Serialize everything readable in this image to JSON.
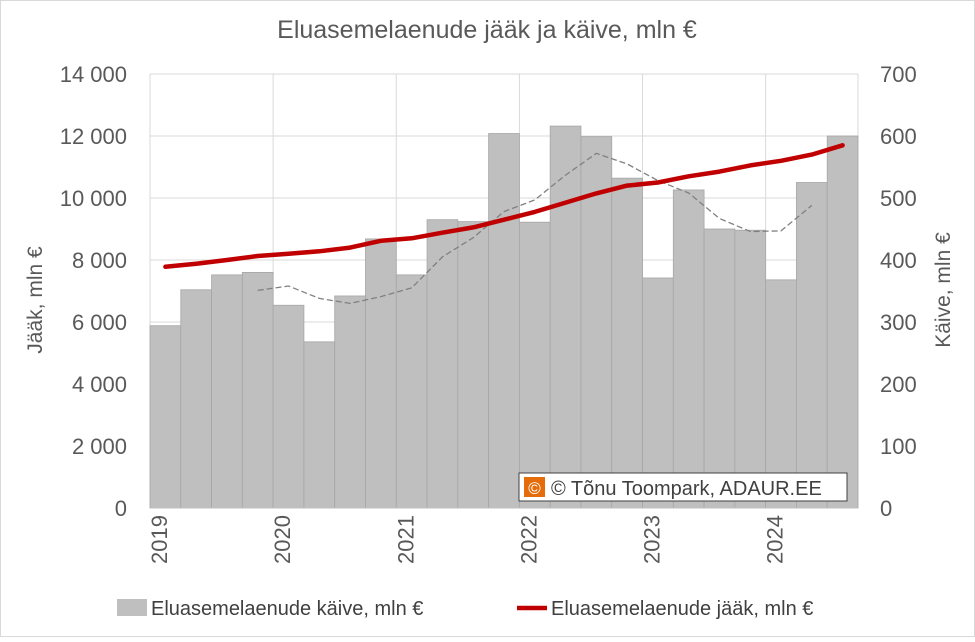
{
  "chart_data": {
    "type": "bar+line",
    "title": "Eluasemelaenude jääk ja käive, mln €",
    "ylabel_left": "Jääk, mln €",
    "ylabel_right": "Käive, mln €",
    "ylim_left": [
      0,
      14000
    ],
    "ylim_right": [
      0,
      700
    ],
    "yticks_left": [
      "0",
      "2 000",
      "4 000",
      "6 000",
      "8 000",
      "10 000",
      "12 000",
      "14 000"
    ],
    "yticks_right": [
      "0",
      "100",
      "200",
      "300",
      "400",
      "500",
      "600",
      "700"
    ],
    "categories": [
      "2019 Q1",
      "2019 Q2",
      "2019 Q3",
      "2019 Q4",
      "2020 Q1",
      "2020 Q2",
      "2020 Q3",
      "2020 Q4",
      "2021 Q1",
      "2021 Q2",
      "2021 Q3",
      "2021 Q4",
      "2022 Q1",
      "2022 Q2",
      "2022 Q3",
      "2022 Q4",
      "2023 Q1",
      "2023 Q2",
      "2023 Q3",
      "2023 Q4",
      "2024 Q1",
      "2024 Q2",
      "2024 Q3"
    ],
    "year_labels": [
      "2019",
      "2020",
      "2021",
      "2022",
      "2023",
      "2024"
    ],
    "grid": true,
    "legend_position": "bottom",
    "series": [
      {
        "name": "Eluasemelaenude käive, mln €",
        "type": "bar",
        "axis": "right",
        "color": "#bfbfbf",
        "values": [
          294,
          352,
          376,
          380,
          327,
          268,
          342,
          434,
          376,
          465,
          462,
          604,
          461,
          616,
          599,
          532,
          371,
          513,
          450,
          448,
          368,
          525,
          600
        ]
      },
      {
        "name": "Eluasemelaenude jääk, mln €",
        "type": "line",
        "axis": "left",
        "color": "#c00000",
        "values": [
          7780,
          7880,
          8000,
          8130,
          8200,
          8280,
          8400,
          8620,
          8700,
          8880,
          9050,
          9300,
          9550,
          9850,
          10150,
          10400,
          10500,
          10700,
          10850,
          11050,
          11200,
          11400,
          11700
        ]
      }
    ],
    "trend": {
      "axis": "right",
      "color": "#808080",
      "start_index": 3,
      "values": [
        351,
        358,
        338,
        330,
        341,
        355,
        405,
        436,
        478,
        497,
        537,
        572,
        555,
        528,
        508,
        467,
        446,
        447,
        488
      ]
    }
  },
  "watermark": "© Tõnu Toompark, ADAUR.EE"
}
